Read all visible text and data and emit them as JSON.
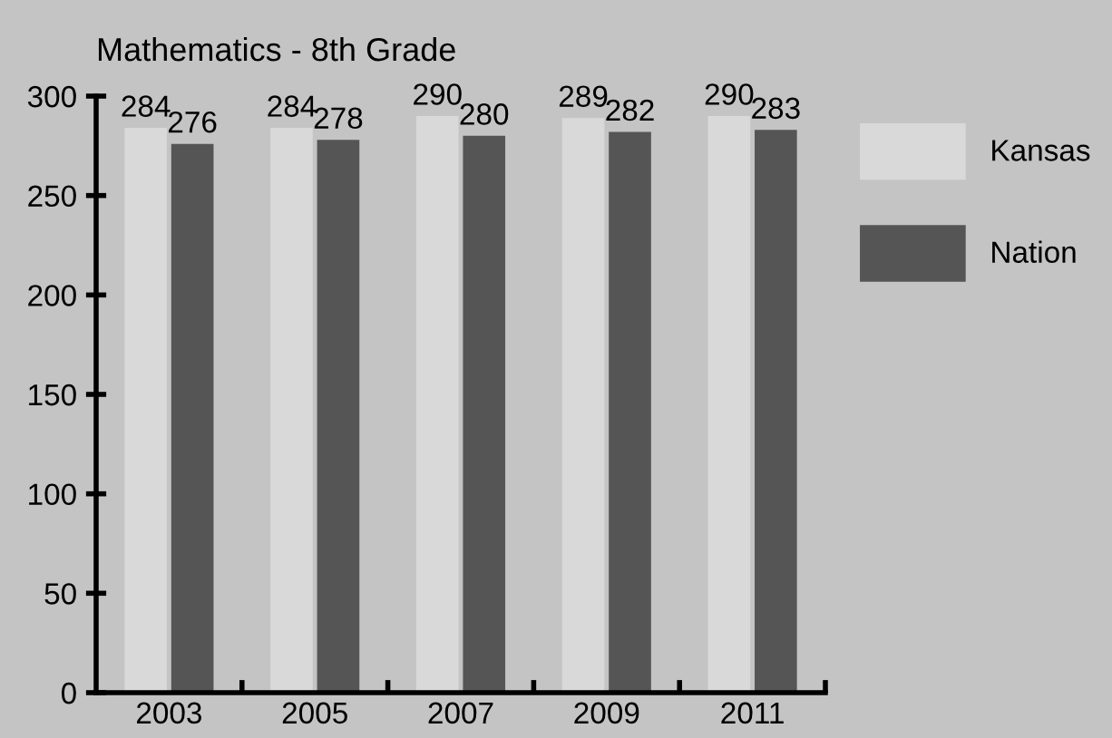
{
  "chart_data": {
    "type": "bar",
    "title": "Mathematics - 8th Grade",
    "categories": [
      "2003",
      "2005",
      "2007",
      "2009",
      "2011"
    ],
    "series": [
      {
        "name": "Kansas",
        "color": "#d9d9d9",
        "values": [
          284,
          284,
          290,
          289,
          290
        ]
      },
      {
        "name": "Nation",
        "color": "#555555",
        "values": [
          276,
          278,
          280,
          282,
          283
        ]
      }
    ],
    "ylim": [
      0,
      300
    ],
    "yticks": [
      0,
      50,
      100,
      150,
      200,
      250,
      300
    ],
    "data_labels": true,
    "grid": false,
    "legend": "top right"
  }
}
